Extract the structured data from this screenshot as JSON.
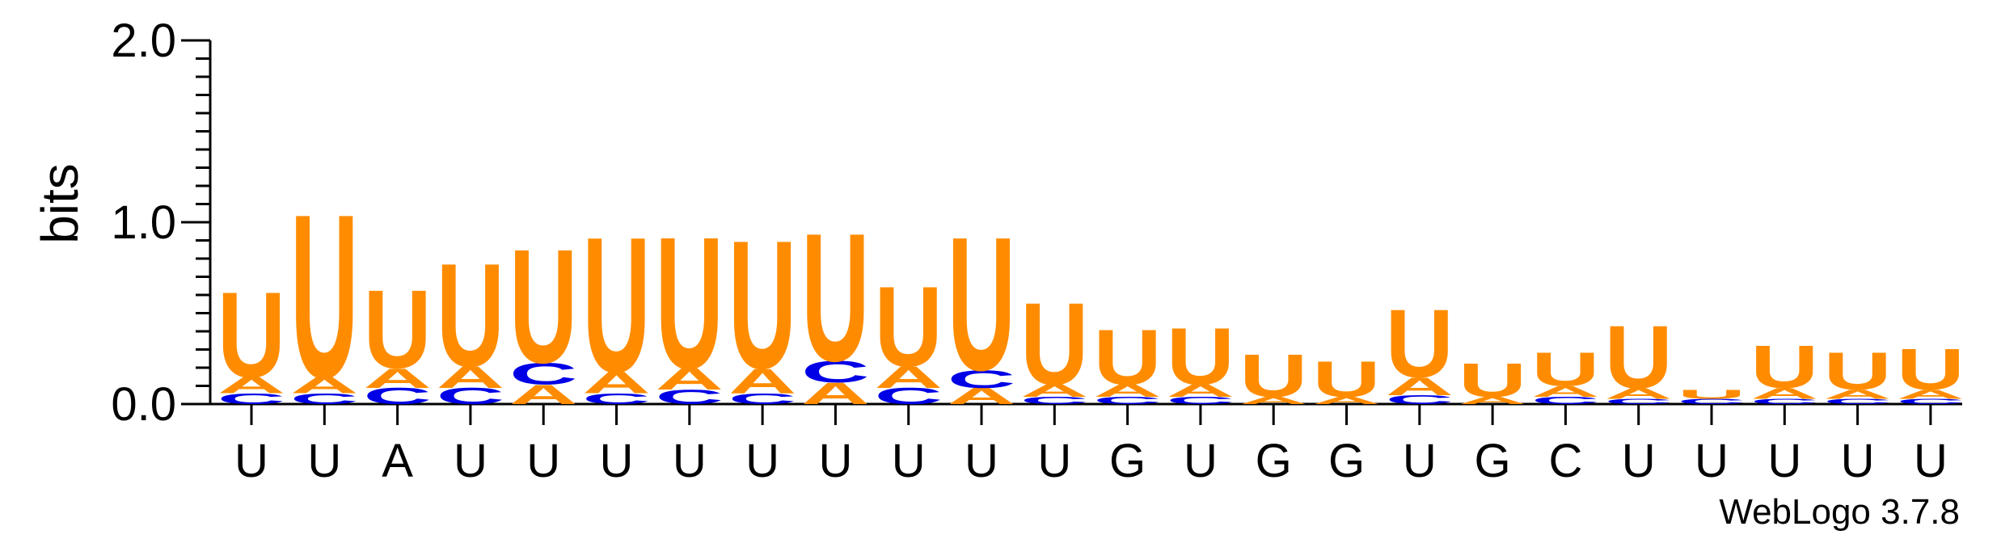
{
  "chart_data": {
    "type": "sequence-logo",
    "ylabel": "bits",
    "ylim": [
      0,
      2.0
    ],
    "yticks": [
      {
        "value": 0.0,
        "label": "0.0"
      },
      {
        "value": 1.0,
        "label": "1.0"
      },
      {
        "value": 2.0,
        "label": "2.0"
      }
    ],
    "x_labels": [
      "U",
      "U",
      "A",
      "U",
      "U",
      "U",
      "U",
      "U",
      "U",
      "U",
      "U",
      "U",
      "G",
      "U",
      "G",
      "G",
      "U",
      "G",
      "C",
      "U",
      "U",
      "U",
      "U",
      "U"
    ],
    "colors": {
      "U": "#ff8c00",
      "A": "#ff8c00",
      "C": "#0000e6",
      "G": "#0000e6"
    },
    "positions": [
      {
        "stack": [
          {
            "letter": "C",
            "bits": 0.06
          },
          {
            "letter": "A",
            "bits": 0.09
          },
          {
            "letter": "U",
            "bits": 0.48
          }
        ]
      },
      {
        "stack": [
          {
            "letter": "C",
            "bits": 0.06
          },
          {
            "letter": "A",
            "bits": 0.09
          },
          {
            "letter": "U",
            "bits": 0.92
          }
        ]
      },
      {
        "stack": [
          {
            "letter": "C",
            "bits": 0.09
          },
          {
            "letter": "A",
            "bits": 0.11
          },
          {
            "letter": "U",
            "bits": 0.44
          }
        ]
      },
      {
        "stack": [
          {
            "letter": "C",
            "bits": 0.09
          },
          {
            "letter": "A",
            "bits": 0.12
          },
          {
            "letter": "U",
            "bits": 0.58
          }
        ]
      },
      {
        "stack": [
          {
            "letter": "A",
            "bits": 0.11
          },
          {
            "letter": "C",
            "bits": 0.12
          },
          {
            "letter": "U",
            "bits": 0.64
          }
        ]
      },
      {
        "stack": [
          {
            "letter": "C",
            "bits": 0.06
          },
          {
            "letter": "A",
            "bits": 0.12
          },
          {
            "letter": "U",
            "bits": 0.76
          }
        ]
      },
      {
        "stack": [
          {
            "letter": "C",
            "bits": 0.08
          },
          {
            "letter": "A",
            "bits": 0.12
          },
          {
            "letter": "U",
            "bits": 0.74
          }
        ]
      },
      {
        "stack": [
          {
            "letter": "C",
            "bits": 0.06
          },
          {
            "letter": "A",
            "bits": 0.14
          },
          {
            "letter": "U",
            "bits": 0.72
          }
        ]
      },
      {
        "stack": [
          {
            "letter": "A",
            "bits": 0.12
          },
          {
            "letter": "C",
            "bits": 0.12
          },
          {
            "letter": "U",
            "bits": 0.72
          }
        ]
      },
      {
        "stack": [
          {
            "letter": "C",
            "bits": 0.09
          },
          {
            "letter": "A",
            "bits": 0.12
          },
          {
            "letter": "U",
            "bits": 0.45
          }
        ]
      },
      {
        "stack": [
          {
            "letter": "A",
            "bits": 0.09
          },
          {
            "letter": "C",
            "bits": 0.1
          },
          {
            "letter": "U",
            "bits": 0.75
          }
        ]
      },
      {
        "stack": [
          {
            "letter": "C",
            "bits": 0.04
          },
          {
            "letter": "A",
            "bits": 0.07
          },
          {
            "letter": "U",
            "bits": 0.46
          }
        ]
      },
      {
        "stack": [
          {
            "letter": "C",
            "bits": 0.04
          },
          {
            "letter": "A",
            "bits": 0.07
          },
          {
            "letter": "U",
            "bits": 0.31
          }
        ]
      },
      {
        "stack": [
          {
            "letter": "C",
            "bits": 0.04
          },
          {
            "letter": "A",
            "bits": 0.07
          },
          {
            "letter": "U",
            "bits": 0.32
          }
        ]
      },
      {
        "stack": [
          {
            "letter": "A",
            "bits": 0.04
          },
          {
            "letter": "U",
            "bits": 0.24
          }
        ]
      },
      {
        "stack": [
          {
            "letter": "A",
            "bits": 0.04
          },
          {
            "letter": "U",
            "bits": 0.2
          }
        ]
      },
      {
        "stack": [
          {
            "letter": "C",
            "bits": 0.05
          },
          {
            "letter": "A",
            "bits": 0.1
          },
          {
            "letter": "U",
            "bits": 0.38
          }
        ]
      },
      {
        "stack": [
          {
            "letter": "A",
            "bits": 0.04
          },
          {
            "letter": "U",
            "bits": 0.19
          }
        ]
      },
      {
        "stack": [
          {
            "letter": "C",
            "bits": 0.04
          },
          {
            "letter": "A",
            "bits": 0.06
          },
          {
            "letter": "U",
            "bits": 0.19
          }
        ]
      },
      {
        "stack": [
          {
            "letter": "C",
            "bits": 0.03
          },
          {
            "letter": "A",
            "bits": 0.06
          },
          {
            "letter": "U",
            "bits": 0.35
          }
        ]
      },
      {
        "stack": [
          {
            "letter": "C",
            "bits": 0.03
          },
          {
            "letter": "U",
            "bits": 0.05
          }
        ]
      },
      {
        "stack": [
          {
            "letter": "C",
            "bits": 0.03
          },
          {
            "letter": "A",
            "bits": 0.06
          },
          {
            "letter": "U",
            "bits": 0.24
          }
        ]
      },
      {
        "stack": [
          {
            "letter": "C",
            "bits": 0.03
          },
          {
            "letter": "A",
            "bits": 0.05
          },
          {
            "letter": "U",
            "bits": 0.21
          }
        ]
      },
      {
        "stack": [
          {
            "letter": "C",
            "bits": 0.03
          },
          {
            "letter": "A",
            "bits": 0.05
          },
          {
            "letter": "U",
            "bits": 0.23
          }
        ]
      }
    ]
  },
  "watermark": "WebLogo 3.7.8"
}
